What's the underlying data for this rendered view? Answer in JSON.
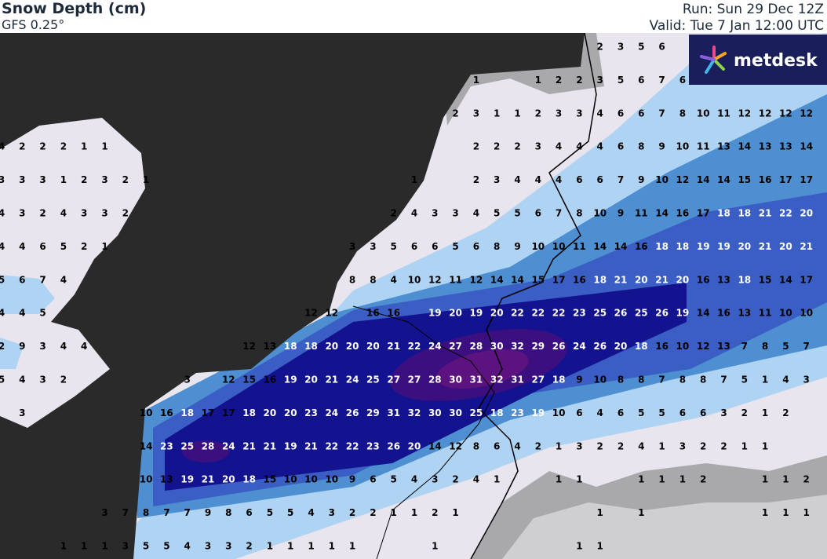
{
  "header": {
    "title": "Snow Depth (cm)",
    "model": "GFS 0.25°",
    "run": "Run: Sun 29 Dec 12Z",
    "valid": "Valid: Tue 7 Jan 12:00 UTC"
  },
  "logo": "metdesk",
  "grid": {
    "rows": [
      [
        null,
        null,
        null,
        null,
        null,
        null,
        null,
        null,
        null,
        null,
        null,
        null,
        null,
        null,
        null,
        null,
        null,
        null,
        null,
        null,
        null,
        null,
        null,
        null,
        null,
        null,
        null,
        null,
        null,
        2,
        3,
        5,
        6,
        null,
        null,
        null,
        null,
        null,
        null,
        null
      ],
      [
        null,
        null,
        null,
        null,
        null,
        null,
        null,
        null,
        null,
        null,
        null,
        null,
        null,
        null,
        null,
        null,
        null,
        null,
        null,
        null,
        null,
        null,
        null,
        1,
        null,
        null,
        1,
        2,
        2,
        3,
        5,
        6,
        7,
        6,
        null,
        null,
        null,
        null,
        null,
        null
      ],
      [
        null,
        null,
        null,
        null,
        null,
        null,
        null,
        null,
        null,
        null,
        null,
        null,
        null,
        null,
        null,
        null,
        null,
        null,
        null,
        null,
        null,
        null,
        2,
        3,
        1,
        1,
        2,
        3,
        3,
        4,
        6,
        6,
        7,
        8,
        10,
        11,
        12,
        12,
        12,
        12
      ],
      [
        4,
        2,
        2,
        2,
        1,
        1,
        null,
        null,
        null,
        null,
        null,
        null,
        null,
        null,
        null,
        null,
        null,
        null,
        null,
        null,
        null,
        null,
        null,
        2,
        2,
        2,
        3,
        4,
        4,
        4,
        6,
        8,
        9,
        10,
        11,
        13,
        14,
        13,
        13,
        14
      ],
      [
        3,
        3,
        3,
        1,
        2,
        3,
        2,
        1,
        null,
        null,
        null,
        null,
        null,
        null,
        null,
        null,
        null,
        null,
        null,
        null,
        1,
        null,
        null,
        2,
        3,
        4,
        4,
        4,
        6,
        6,
        7,
        9,
        10,
        12,
        14,
        14,
        15,
        16,
        17,
        17
      ],
      [
        4,
        3,
        2,
        4,
        3,
        3,
        2,
        null,
        null,
        null,
        null,
        null,
        null,
        null,
        null,
        null,
        null,
        null,
        null,
        2,
        4,
        3,
        3,
        4,
        5,
        5,
        6,
        7,
        8,
        10,
        9,
        11,
        14,
        16,
        17,
        18,
        18,
        21,
        22,
        20
      ],
      [
        4,
        4,
        6,
        5,
        2,
        1,
        null,
        null,
        null,
        null,
        null,
        null,
        null,
        null,
        null,
        null,
        null,
        3,
        3,
        5,
        6,
        6,
        5,
        6,
        8,
        9,
        10,
        10,
        11,
        14,
        14,
        16,
        18,
        18,
        19,
        19,
        20,
        21,
        20,
        21
      ],
      [
        5,
        6,
        7,
        4,
        null,
        null,
        null,
        null,
        null,
        null,
        null,
        null,
        null,
        null,
        null,
        null,
        null,
        8,
        8,
        4,
        10,
        12,
        11,
        12,
        14,
        14,
        15,
        17,
        16,
        18,
        21,
        20,
        21,
        20,
        16,
        13,
        18,
        15,
        14,
        17
      ],
      [
        4,
        4,
        5,
        null,
        null,
        null,
        null,
        null,
        null,
        null,
        null,
        null,
        null,
        null,
        null,
        12,
        12,
        null,
        16,
        16,
        null,
        19,
        20,
        19,
        20,
        22,
        22,
        22,
        23,
        25,
        26,
        25,
        26,
        19,
        14,
        16,
        13,
        11,
        10,
        10
      ],
      [
        2,
        9,
        3,
        4,
        4,
        null,
        null,
        null,
        null,
        null,
        null,
        null,
        12,
        13,
        18,
        18,
        20,
        20,
        20,
        21,
        22,
        24,
        27,
        28,
        30,
        32,
        29,
        26,
        24,
        26,
        20,
        18,
        16,
        10,
        12,
        13,
        7,
        8,
        5,
        7
      ],
      [
        5,
        4,
        3,
        2,
        null,
        null,
        null,
        null,
        null,
        3,
        null,
        12,
        15,
        16,
        19,
        20,
        21,
        24,
        25,
        27,
        27,
        28,
        30,
        31,
        32,
        31,
        27,
        18,
        9,
        10,
        8,
        8,
        7,
        8,
        8,
        7,
        5,
        1,
        4,
        3
      ],
      [
        null,
        3,
        null,
        null,
        null,
        null,
        null,
        10,
        16,
        18,
        17,
        17,
        18,
        20,
        20,
        23,
        24,
        26,
        29,
        31,
        32,
        30,
        30,
        25,
        18,
        23,
        19,
        10,
        6,
        4,
        6,
        5,
        5,
        6,
        6,
        3,
        2,
        1,
        2,
        null
      ],
      [
        null,
        null,
        null,
        null,
        null,
        null,
        null,
        14,
        23,
        25,
        28,
        24,
        21,
        21,
        19,
        21,
        22,
        22,
        23,
        26,
        20,
        14,
        12,
        8,
        6,
        4,
        2,
        1,
        3,
        2,
        2,
        4,
        1,
        3,
        2,
        2,
        1,
        1,
        null,
        null
      ],
      [
        null,
        null,
        null,
        null,
        null,
        null,
        null,
        10,
        13,
        19,
        21,
        20,
        18,
        15,
        10,
        10,
        10,
        9,
        6,
        5,
        4,
        3,
        2,
        4,
        1,
        null,
        null,
        1,
        1,
        null,
        null,
        1,
        1,
        1,
        2,
        null,
        null,
        1,
        1,
        2
      ],
      [
        null,
        null,
        null,
        null,
        null,
        3,
        7,
        8,
        7,
        7,
        9,
        8,
        6,
        5,
        5,
        4,
        3,
        2,
        2,
        1,
        1,
        2,
        1,
        null,
        null,
        null,
        null,
        null,
        null,
        1,
        null,
        1,
        null,
        null,
        null,
        null,
        null,
        1,
        1,
        1
      ],
      [
        null,
        null,
        null,
        1,
        1,
        1,
        3,
        5,
        5,
        4,
        3,
        3,
        2,
        1,
        1,
        1,
        1,
        1,
        null,
        null,
        null,
        1,
        null,
        null,
        null,
        null,
        null,
        null,
        1,
        1,
        null,
        null,
        null,
        null,
        null,
        null,
        null,
        null,
        null,
        null
      ]
    ]
  }
}
